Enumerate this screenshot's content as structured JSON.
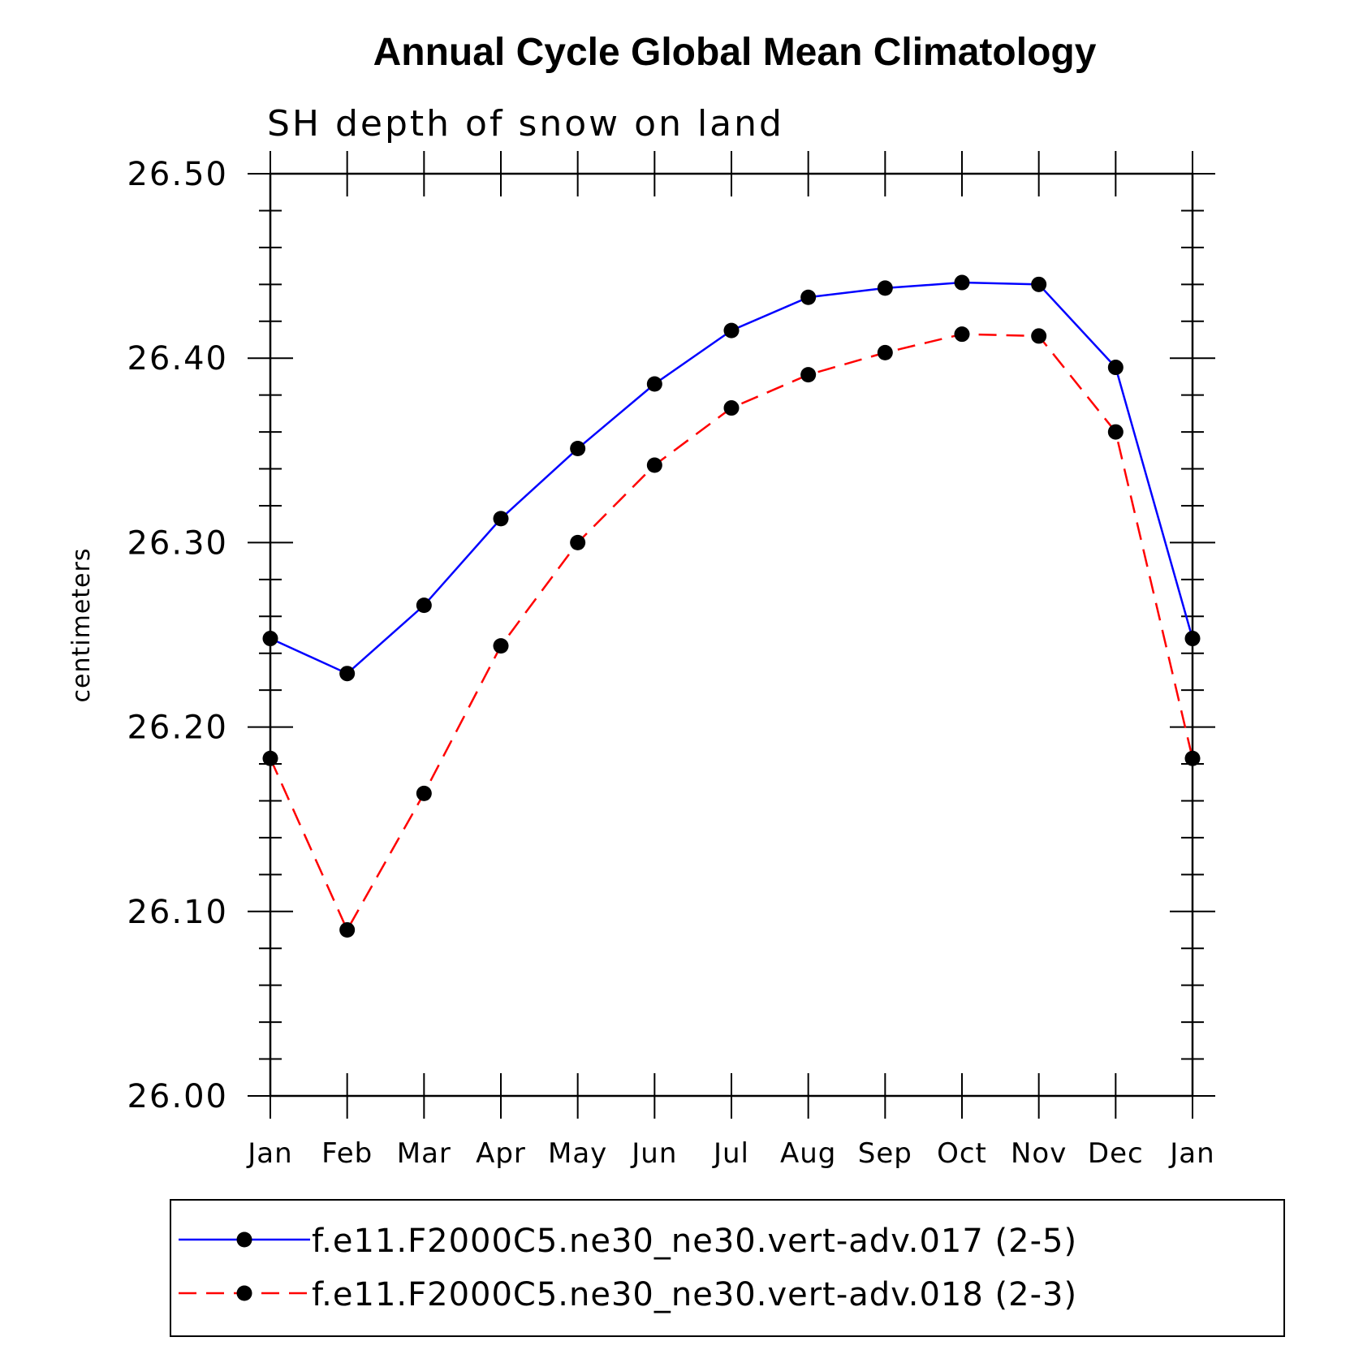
{
  "chart_data": {
    "type": "line",
    "title": "Annual Cycle Global Mean Climatology",
    "subtitle": "SH depth of snow on land",
    "xlabel": "",
    "ylabel": "centimeters",
    "categories": [
      "Jan",
      "Feb",
      "Mar",
      "Apr",
      "May",
      "Jun",
      "Jul",
      "Aug",
      "Sep",
      "Oct",
      "Nov",
      "Dec",
      "Jan"
    ],
    "ylim": [
      26.0,
      26.5
    ],
    "yticks": [
      "26.00",
      "26.10",
      "26.20",
      "26.30",
      "26.40",
      "26.50"
    ],
    "legend_position": "bottom",
    "series": [
      {
        "name": "f.e11.F2000C5.ne30_ne30.vert-adv.017 (2-5)",
        "color": "#0000ff",
        "line_style": "solid",
        "marker": "filled-circle",
        "values": [
          26.248,
          26.229,
          26.266,
          26.313,
          26.351,
          26.386,
          26.415,
          26.433,
          26.438,
          26.441,
          26.44,
          26.395,
          26.248
        ]
      },
      {
        "name": "f.e11.F2000C5.ne30_ne30.vert-adv.018 (2-3)",
        "color": "#ff0000",
        "line_style": "dashed",
        "marker": "filled-circle",
        "values": [
          26.183,
          26.09,
          26.164,
          26.244,
          26.3,
          26.342,
          26.373,
          26.391,
          26.403,
          26.413,
          26.412,
          26.36,
          26.183
        ]
      }
    ]
  }
}
